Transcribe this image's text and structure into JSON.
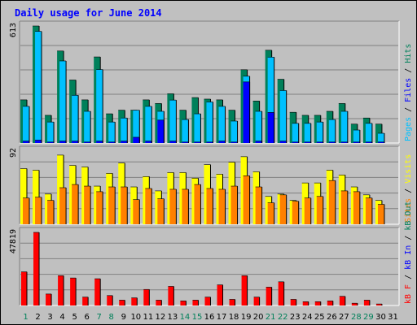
{
  "title": "Daily usage for June 2014",
  "colors": {
    "background": "#c0c0c0",
    "title": "#0000ff",
    "hits": "#00805a",
    "files": "#00c0ff",
    "pages": "#0000ff",
    "visits": "#ffff00",
    "sites": "#ff8000",
    "kb_f": "#ff0000",
    "kb_in": "#0000ff",
    "kb_out": "#00805a",
    "weekend_day": "#00805a",
    "weekday": "#000000"
  },
  "chart_data": [
    {
      "type": "bar",
      "name": "hits-files-pages",
      "ymax": 613,
      "ymax_label": "613",
      "legend": [
        {
          "text": "Pages",
          "color": "#00c0ff"
        },
        {
          "text": " / ",
          "color": "#000000"
        },
        {
          "text": "Files",
          "color": "#0000ff"
        },
        {
          "text": " / ",
          "color": "#000000"
        },
        {
          "text": "Hits",
          "color": "#00805a"
        }
      ],
      "categories": [
        "1",
        "2",
        "3",
        "4",
        "5",
        "6",
        "7",
        "8",
        "9",
        "10",
        "11",
        "12",
        "13",
        "14",
        "15",
        "16",
        "17",
        "18",
        "19",
        "20",
        "21",
        "22",
        "23",
        "24",
        "25",
        "26",
        "27",
        "28",
        "29",
        "30",
        "31"
      ],
      "series": [
        {
          "name": "Hits",
          "values": [
            226,
            613,
            145,
            482,
            330,
            226,
            451,
            153,
            172,
            172,
            226,
            207,
            258,
            172,
            238,
            230,
            226,
            172,
            384,
            220,
            486,
            334,
            161,
            145,
            145,
            166,
            207,
            99,
            131,
            99,
            0
          ]
        },
        {
          "name": "Files",
          "values": [
            192,
            585,
            110,
            430,
            250,
            166,
            385,
            110,
            131,
            172,
            192,
            166,
            225,
            123,
            153,
            215,
            192,
            115,
            350,
            166,
            450,
            275,
            103,
            103,
            110,
            123,
            166,
            68,
            103,
            51,
            0
          ]
        },
        {
          "name": "Pages",
          "values": [
            10,
            15,
            5,
            10,
            10,
            5,
            10,
            5,
            10,
            30,
            10,
            120,
            10,
            5,
            5,
            5,
            10,
            5,
            320,
            10,
            160,
            10,
            5,
            5,
            5,
            5,
            5,
            5,
            5,
            5,
            0
          ]
        }
      ]
    },
    {
      "type": "bar",
      "name": "visits-sites",
      "ymax": 92,
      "ymax_label": "92",
      "legend": [
        {
          "text": "Sites",
          "color": "#ff8000"
        },
        {
          "text": " / ",
          "color": "#000000"
        },
        {
          "text": "Visits",
          "color": "#ffff00"
        }
      ],
      "categories": [
        "1",
        "2",
        "3",
        "4",
        "5",
        "6",
        "7",
        "8",
        "9",
        "10",
        "11",
        "12",
        "13",
        "14",
        "15",
        "16",
        "17",
        "18",
        "19",
        "20",
        "21",
        "22",
        "23",
        "24",
        "25",
        "26",
        "27",
        "28",
        "29",
        "30",
        "31"
      ],
      "series": [
        {
          "name": "Visits",
          "values": [
            70,
            68,
            38,
            87,
            74,
            72,
            48,
            64,
            77,
            47,
            60,
            42,
            65,
            65,
            58,
            75,
            63,
            78,
            85,
            66,
            35,
            38,
            30,
            52,
            52,
            68,
            62,
            47,
            37,
            30,
            0
          ]
        },
        {
          "name": "Sites",
          "values": [
            33,
            34,
            30,
            46,
            50,
            48,
            41,
            47,
            47,
            31,
            45,
            32,
            44,
            44,
            50,
            45,
            44,
            48,
            61,
            47,
            27,
            37,
            29,
            33,
            35,
            55,
            42,
            41,
            33,
            25,
            0
          ]
        }
      ]
    },
    {
      "type": "bar",
      "name": "kb",
      "ymax": 47819,
      "ymax_label": "47819",
      "legend": [
        {
          "text": "kB F",
          "color": "#ff0000"
        },
        {
          "text": " / ",
          "color": "#000000"
        },
        {
          "text": "kB In",
          "color": "#0000ff"
        },
        {
          "text": " / ",
          "color": "#000000"
        },
        {
          "text": "kB Out",
          "color": "#00805a"
        }
      ],
      "categories": [
        "1",
        "2",
        "3",
        "4",
        "5",
        "6",
        "7",
        "8",
        "9",
        "10",
        "11",
        "12",
        "13",
        "14",
        "15",
        "16",
        "17",
        "18",
        "19",
        "20",
        "21",
        "22",
        "23",
        "24",
        "25",
        "26",
        "27",
        "28",
        "29",
        "30",
        "31"
      ],
      "series": [
        {
          "name": "kB F",
          "values": [
            22000,
            47819,
            7500,
            19500,
            18000,
            5500,
            17500,
            6500,
            3500,
            5000,
            10500,
            3500,
            12500,
            3000,
            3500,
            5500,
            13500,
            4000,
            19500,
            5500,
            12000,
            15500,
            4000,
            2500,
            2500,
            3000,
            6000,
            1500,
            3500,
            1000,
            0
          ]
        }
      ]
    }
  ],
  "x_labels": [
    {
      "text": "1",
      "weekend": true
    },
    {
      "text": "2",
      "weekend": false
    },
    {
      "text": "3",
      "weekend": false
    },
    {
      "text": "4",
      "weekend": false
    },
    {
      "text": "5",
      "weekend": false
    },
    {
      "text": "6",
      "weekend": false
    },
    {
      "text": "7",
      "weekend": true
    },
    {
      "text": "8",
      "weekend": true
    },
    {
      "text": "9",
      "weekend": false
    },
    {
      "text": "10",
      "weekend": false
    },
    {
      "text": "11",
      "weekend": false
    },
    {
      "text": "12",
      "weekend": false
    },
    {
      "text": "13",
      "weekend": false
    },
    {
      "text": "14",
      "weekend": true
    },
    {
      "text": "15",
      "weekend": true
    },
    {
      "text": "16",
      "weekend": false
    },
    {
      "text": "17",
      "weekend": false
    },
    {
      "text": "18",
      "weekend": false
    },
    {
      "text": "19",
      "weekend": false
    },
    {
      "text": "20",
      "weekend": false
    },
    {
      "text": "21",
      "weekend": true
    },
    {
      "text": "22",
      "weekend": true
    },
    {
      "text": "23",
      "weekend": false
    },
    {
      "text": "24",
      "weekend": false
    },
    {
      "text": "25",
      "weekend": false
    },
    {
      "text": "26",
      "weekend": false
    },
    {
      "text": "27",
      "weekend": false
    },
    {
      "text": "28",
      "weekend": true
    },
    {
      "text": "29",
      "weekend": true
    },
    {
      "text": "30",
      "weekend": false
    },
    {
      "text": "31",
      "weekend": false
    }
  ]
}
